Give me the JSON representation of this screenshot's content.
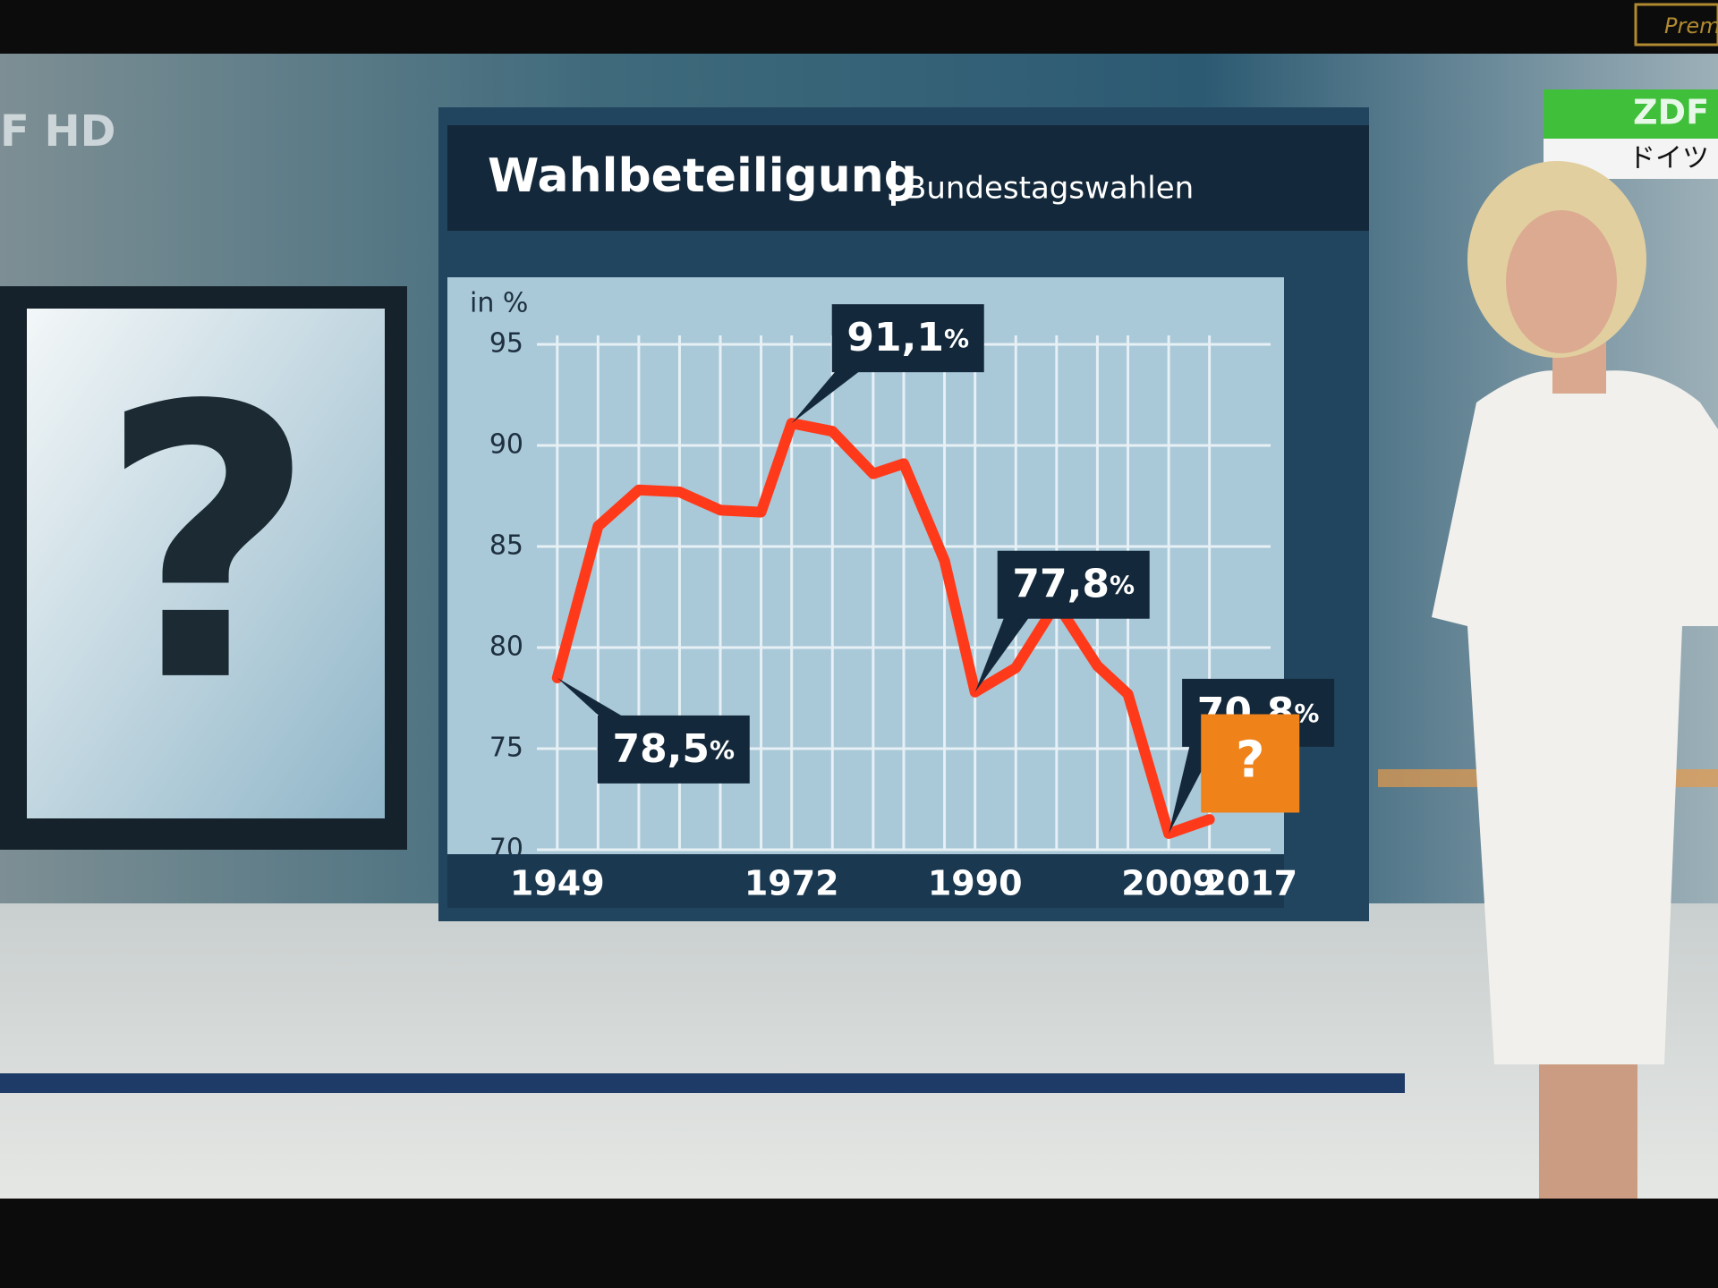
{
  "channel_logo": "F HD",
  "corner_top": "Prem",
  "corner_badge": "ZDF",
  "corner_sub": "ドイツ",
  "left_panel": {
    "label": "?"
  },
  "chart_data": {
    "type": "line",
    "title": "Wahlbeteiligung",
    "subtitle": "Bundestagswahlen",
    "y_label": "in %",
    "x": [
      1949,
      1953,
      1957,
      1961,
      1965,
      1969,
      1972,
      1976,
      1980,
      1983,
      1987,
      1990,
      1994,
      1998,
      2002,
      2005,
      2009,
      2013
    ],
    "values": [
      78.5,
      86.0,
      87.8,
      87.7,
      86.8,
      86.7,
      91.1,
      90.7,
      88.6,
      89.1,
      84.3,
      77.8,
      79.0,
      82.2,
      79.1,
      77.7,
      70.8,
      71.5
    ],
    "color": "#ff3a1a",
    "xlim": [
      1947,
      2019
    ],
    "xticks": [
      1949,
      1972,
      1990,
      2009,
      2017
    ],
    "ylim": [
      70,
      95
    ],
    "yticks": [
      70,
      75,
      80,
      85,
      90,
      95
    ],
    "grid": true,
    "annotations": [
      {
        "x": 1949,
        "value": 78.5,
        "label": "78,5%"
      },
      {
        "x": 1972,
        "value": 91.1,
        "label": "91,1%"
      },
      {
        "x": 1990,
        "value": 77.8,
        "label": "77,8%"
      },
      {
        "x": 2009,
        "value": 70.8,
        "label": "70,8%"
      },
      {
        "x": 2017,
        "label": "?"
      }
    ]
  }
}
